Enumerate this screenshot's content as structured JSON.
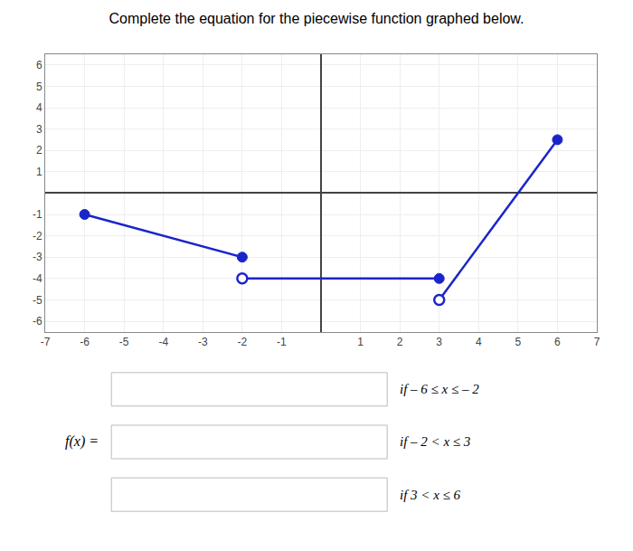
{
  "chart_data": {
    "type": "line",
    "title": "Complete the equation for the piecewise function graphed below.",
    "xlim": [
      -7,
      7
    ],
    "ylim": [
      -6.5,
      6.5
    ],
    "xticks": [
      -7,
      -6,
      -5,
      -4,
      -3,
      -2,
      -1,
      1,
      2,
      3,
      4,
      5,
      6,
      7
    ],
    "yticks": [
      -6,
      -5,
      -4,
      -3,
      -2,
      -1,
      1,
      2,
      3,
      4,
      5,
      6
    ],
    "grid": true,
    "series": [
      {
        "x": [
          -6,
          -2
        ],
        "values": [
          -1,
          -3
        ],
        "color": "#1a25c9",
        "line_style": "solid"
      },
      {
        "x": [
          -2,
          3
        ],
        "values": [
          -4,
          -4
        ],
        "color": "#1a25c9",
        "line_style": "solid"
      },
      {
        "x": [
          3,
          6
        ],
        "values": [
          -5,
          2.5
        ],
        "color": "#1a25c9",
        "line_style": "solid"
      },
      {
        "type": "scatter",
        "x": [
          -6,
          -2,
          3,
          6
        ],
        "values": [
          -1,
          -3,
          -4,
          2.5
        ],
        "color": "#1a25c9",
        "marker": "circle"
      },
      {
        "type": "scatter",
        "x": [
          -2,
          3
        ],
        "values": [
          -4,
          -5
        ],
        "color": "#1a25c9",
        "marker": "circle-open"
      }
    ],
    "annotations": [
      "f(x) =",
      "if – 6 ≤ x ≤ – 2",
      "if – 2 < x ≤ 3",
      "if 3 < x ≤ 6"
    ]
  }
}
